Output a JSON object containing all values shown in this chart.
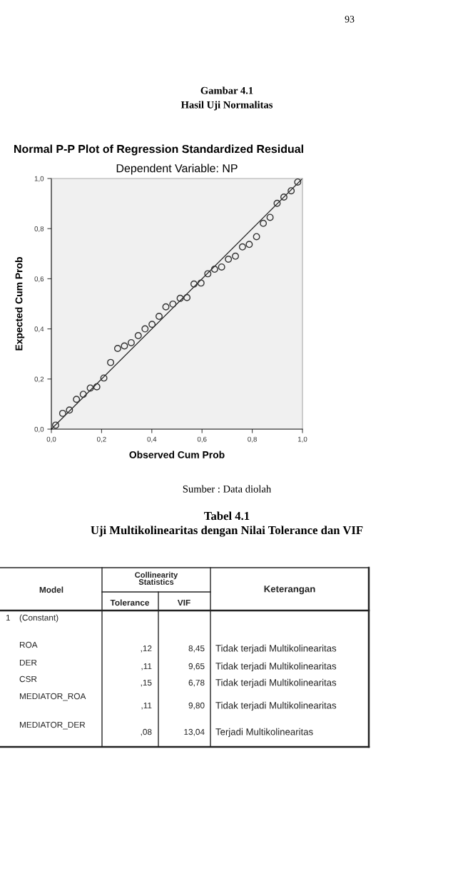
{
  "chart_data": [
    {
      "type": "scatter",
      "title": "Normal P-P Plot of Regression Standardized Residual",
      "subtitle": "Dependent Variable: NP",
      "xlabel": "Observed Cum Prob",
      "ylabel": "Expected Cum Prob",
      "annotations": [
        "93",
        "Gambar 4.1",
        "Hasil Uji Normalitas",
        "Sumber : Data diolah"
      ],
      "xlim": [
        0,
        1
      ],
      "ylim": [
        0,
        1
      ],
      "xticks": [
        {
          "value": 0,
          "label": "0,0"
        },
        {
          "value": 0.2,
          "label": "0,2"
        },
        {
          "value": 0.4,
          "label": "0,4"
        },
        {
          "value": 0.6,
          "label": "0,6"
        },
        {
          "value": 0.8,
          "label": "0,8"
        },
        {
          "value": 1,
          "label": "1,0"
        }
      ],
      "yticks": [
        {
          "value": 0,
          "label": "0,0"
        },
        {
          "value": 0.2,
          "label": "0,2"
        },
        {
          "value": 0.4,
          "label": "0,4"
        },
        {
          "value": 0.6,
          "label": "0,6"
        },
        {
          "value": 0.8,
          "label": "0,8"
        },
        {
          "value": 1,
          "label": "1,0"
        }
      ],
      "grid": false,
      "series": [
        {
          "type": "scatter",
          "marker": "circle",
          "color": "#333333",
          "x": [
            0.017,
            0.045,
            0.072,
            0.1,
            0.127,
            0.155,
            0.181,
            0.209,
            0.236,
            0.264,
            0.291,
            0.318,
            0.346,
            0.373,
            0.401,
            0.429,
            0.456,
            0.484,
            0.513,
            0.54,
            0.568,
            0.596,
            0.623,
            0.65,
            0.678,
            0.705,
            0.733,
            0.761,
            0.788,
            0.817,
            0.844,
            0.871,
            0.899,
            0.926,
            0.955,
            0.981
          ],
          "values": [
            0.016,
            0.063,
            0.076,
            0.119,
            0.139,
            0.164,
            0.169,
            0.204,
            0.266,
            0.322,
            0.332,
            0.345,
            0.373,
            0.4,
            0.418,
            0.45,
            0.488,
            0.499,
            0.522,
            0.525,
            0.579,
            0.583,
            0.62,
            0.638,
            0.647,
            0.678,
            0.69,
            0.727,
            0.737,
            0.768,
            0.821,
            0.845,
            0.901,
            0.926,
            0.951,
            0.986
          ]
        },
        {
          "type": "line",
          "marker": "none",
          "color": "#222222",
          "x": [
            0,
            1
          ],
          "values": [
            0,
            1
          ]
        }
      ]
    },
    {
      "type": "other",
      "title": "Tabel 4.1",
      "subtitle": "Uji Multikolinearitas dengan Nilai Tolerance dan VIF",
      "annotations": [
        "Model",
        "Collinearity\nStatistics",
        "Keterangan",
        "Tolerance",
        "VIF",
        "1",
        "(Constant)",
        "ROA",
        ",12",
        "8,45",
        "Tidak terjadi Multikolinearitas",
        "DER",
        ",11",
        "9,65",
        "Tidak terjadi Multikolinearitas",
        "CSR",
        ",15",
        "6,78",
        "Tidak terjadi Multikolinearitas",
        "MEDIATOR_ROA",
        ",11",
        "9,80",
        "Tidak terjadi Multikolinearitas",
        "MEDIATOR_DER",
        ",08",
        "13,04",
        "Terjadi Multikolinearitas"
      ]
    }
  ]
}
